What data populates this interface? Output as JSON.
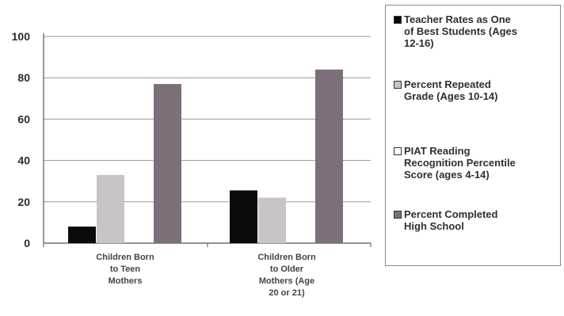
{
  "chart_data": {
    "type": "bar",
    "categories": [
      [
        "Children Born",
        "to Teen",
        "Mothers"
      ],
      [
        "Children Born",
        "to Older",
        "Mothers (Age",
        "20 or 21)"
      ]
    ],
    "series": [
      {
        "name": "Teacher Rates as One of Best Students (Ages 12-16)",
        "values": [
          8,
          25.5
        ],
        "color": "#0a0a0a"
      },
      {
        "name": "Percent Repeated Grade (Ages 10-14)",
        "values": [
          33,
          22
        ],
        "color": "#c8c4c8"
      },
      {
        "name": "PIAT Reading Recognition Percentile Score (ages 4-14)",
        "values": [
          0,
          0
        ],
        "color": "#ffffff"
      },
      {
        "name": "Percent Completed High School",
        "values": [
          77,
          84
        ],
        "color": "#7d6f7a"
      }
    ],
    "legend_lines": [
      [
        "Teacher Rates as One",
        "of Best Students (Ages",
        "12-16)"
      ],
      [
        "Percent Repeated",
        "Grade (Ages 10-14)"
      ],
      [
        "PIAT Reading",
        "Recognition Percentile",
        "Score (ages 4-14)"
      ],
      [
        "Percent Completed",
        "High School"
      ]
    ],
    "yticks": [
      "0",
      "20",
      "40",
      "60",
      "80",
      "100"
    ],
    "ylim": [
      0,
      100
    ],
    "grid": true,
    "legend_position": "right"
  }
}
